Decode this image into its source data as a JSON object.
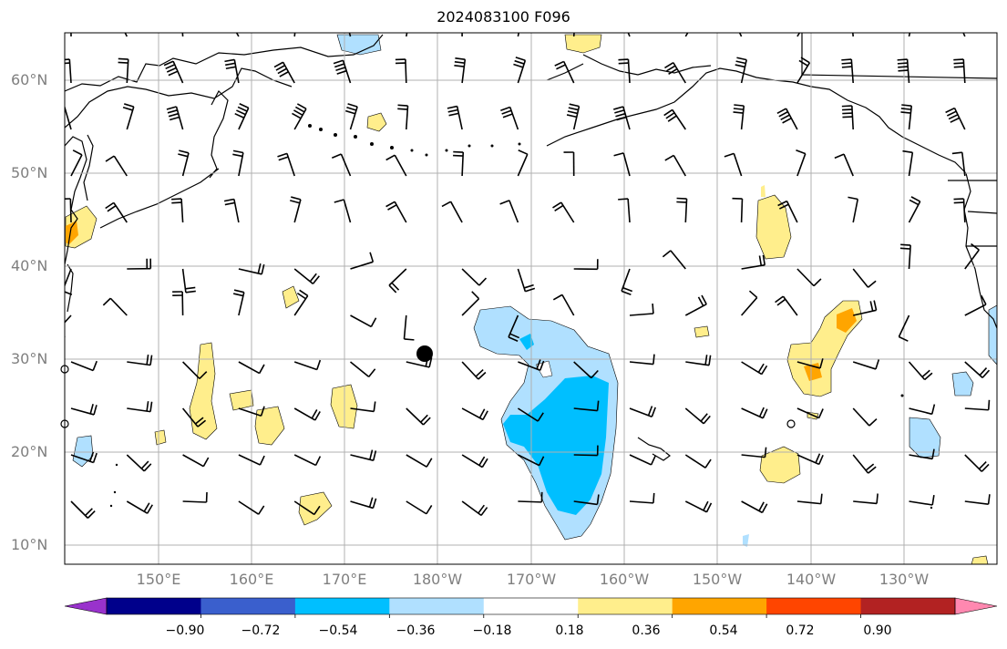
{
  "title": "2024083100 F096",
  "map": {
    "projection": "PlateCarree",
    "lon_range": [
      140,
      240
    ],
    "lat_range": [
      8,
      65
    ],
    "grid": true,
    "lat_labels": [
      "10°N",
      "20°N",
      "30°N",
      "40°N",
      "50°N",
      "60°N"
    ],
    "lon_labels": [
      "150°E",
      "160°E",
      "170°E",
      "180°W",
      "170°W",
      "160°W",
      "150°W",
      "140°W",
      "130°W"
    ],
    "marker": {
      "label": "storm-center",
      "lon": 179.3,
      "lat": 30.5,
      "color": "#000000"
    }
  },
  "colorbar": {
    "ticks": [
      "−0.90",
      "−0.72",
      "−0.54",
      "−0.36",
      "−0.18",
      "0.18",
      "0.36",
      "0.54",
      "0.72",
      "0.90"
    ],
    "colors": [
      "#9932cc",
      "#00008b",
      "#3a5fcd",
      "#00bfff",
      "#b0e0ff",
      "#ffffff",
      "#ffee8c",
      "#ffa500",
      "#ff4500",
      "#b22222",
      "#ff88b0"
    ],
    "extend": "both"
  }
}
